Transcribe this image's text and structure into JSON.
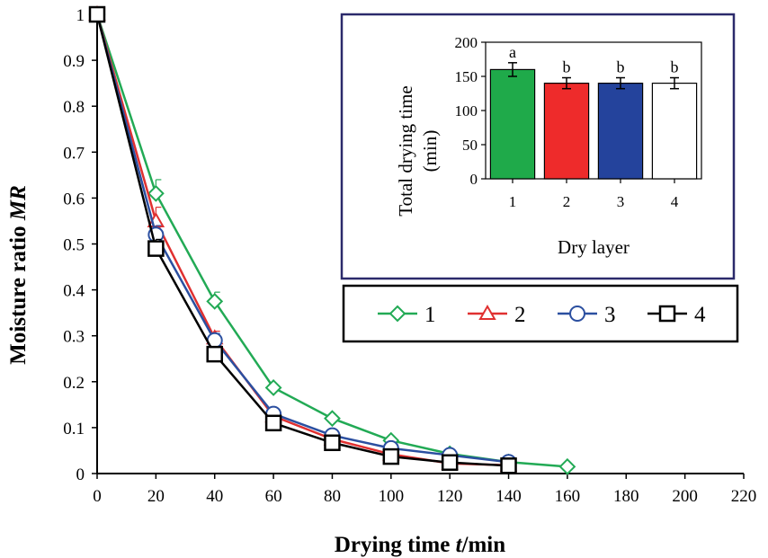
{
  "chart_data": [
    {
      "type": "line",
      "xlabel_prefix": "Drying time ",
      "xlabel_var": "t",
      "xlabel_suffix": "/min",
      "ylabel_prefix": "Moisture ratio ",
      "ylabel_var": "MR",
      "xlim": [
        0,
        220
      ],
      "ylim": [
        0,
        1
      ],
      "x_ticks": [
        "0",
        "20",
        "40",
        "60",
        "80",
        "100",
        "120",
        "140",
        "160",
        "180",
        "200",
        "220"
      ],
      "y_ticks": [
        "0",
        "0.1",
        "0.2",
        "0.3",
        "0.4",
        "0.5",
        "0.6",
        "0.7",
        "0.8",
        "0.9",
        "1"
      ],
      "series": [
        {
          "name": "1",
          "marker": "diamond",
          "color": "#22aa55",
          "x": [
            0,
            20,
            40,
            60,
            80,
            100,
            120,
            140,
            160
          ],
          "y": [
            1.0,
            0.61,
            0.375,
            0.187,
            0.12,
            0.072,
            0.043,
            0.025,
            0.015
          ],
          "err": [
            0,
            0.03,
            0.02,
            0.005,
            0.005,
            0.005,
            0.003,
            0.003,
            0.003
          ]
        },
        {
          "name": "2",
          "marker": "triangle",
          "color": "#e03030",
          "x": [
            0,
            20,
            40,
            60,
            80,
            100,
            120,
            140
          ],
          "y": [
            1.0,
            0.55,
            0.295,
            0.125,
            0.075,
            0.042,
            0.022,
            0.018
          ],
          "err": [
            0,
            0.03,
            0.015,
            0.005,
            0.005,
            0.004,
            0.003,
            0.003
          ]
        },
        {
          "name": "3",
          "marker": "circle",
          "color": "#2b4fa0",
          "x": [
            0,
            20,
            40,
            60,
            80,
            100,
            120,
            140
          ],
          "y": [
            1.0,
            0.52,
            0.29,
            0.13,
            0.083,
            0.055,
            0.04,
            0.025
          ],
          "err": [
            0,
            0.02,
            0.015,
            0.005,
            0.004,
            0.004,
            0.003,
            0.003
          ]
        },
        {
          "name": "4",
          "marker": "square",
          "color": "#000000",
          "x": [
            0,
            20,
            40,
            60,
            80,
            100,
            120,
            140
          ],
          "y": [
            1.0,
            0.49,
            0.26,
            0.11,
            0.067,
            0.037,
            0.024,
            0.017
          ],
          "err": [
            0,
            0.02,
            0.01,
            0.005,
            0.004,
            0.003,
            0.003,
            0.003
          ]
        }
      ],
      "legend": [
        "1",
        "2",
        "3",
        "4"
      ]
    },
    {
      "type": "bar",
      "categories": [
        "1",
        "2",
        "3",
        "4"
      ],
      "values": [
        160,
        140,
        140,
        140
      ],
      "errors": [
        10,
        8,
        8,
        8
      ],
      "colors": [
        "#1faa4a",
        "#ee2b2b",
        "#24439c",
        "#ffffff"
      ],
      "significance": [
        "a",
        "b",
        "b",
        "b"
      ],
      "ylabel_line1": "Total drying time",
      "ylabel_line2": "(min)",
      "xlabel": "Dry layer",
      "ylim": [
        0,
        200
      ],
      "y_ticks": [
        "0",
        "50",
        "100",
        "150",
        "200"
      ]
    }
  ]
}
